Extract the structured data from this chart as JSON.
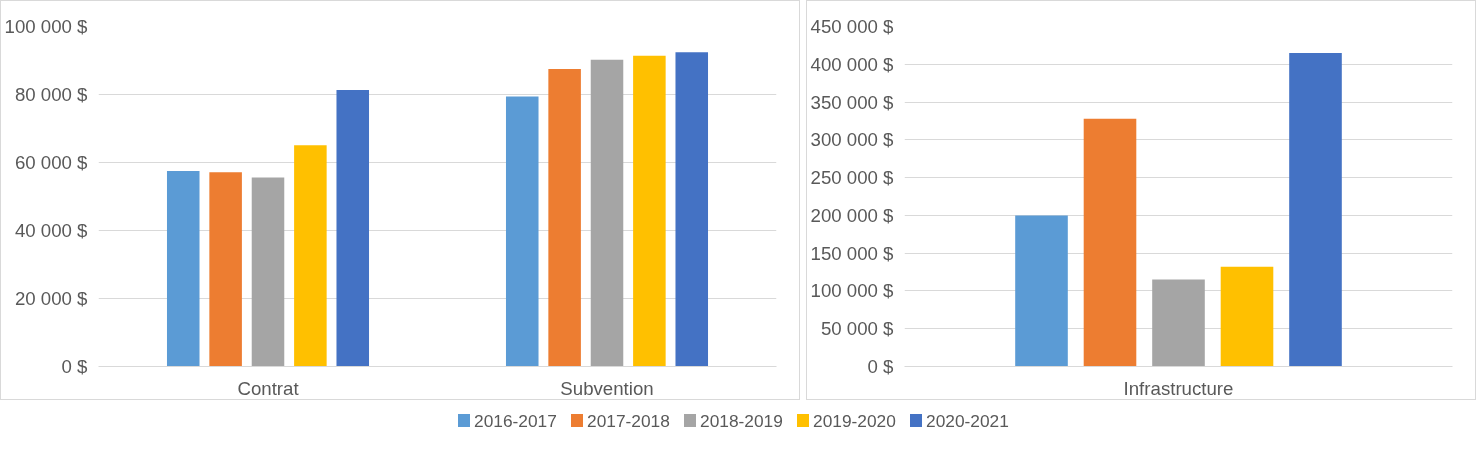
{
  "chart_data": [
    {
      "type": "bar",
      "categories": [
        "Contrat",
        "Subvention"
      ],
      "series": [
        {
          "name": "2016-2017",
          "color": "#5b9bd5",
          "values": [
            57500,
            79400
          ]
        },
        {
          "name": "2017-2018",
          "color": "#ed7d31",
          "values": [
            57100,
            87500
          ]
        },
        {
          "name": "2018-2019",
          "color": "#a5a5a5",
          "values": [
            55600,
            90200
          ]
        },
        {
          "name": "2019-2020",
          "color": "#ffc000",
          "values": [
            65100,
            91400
          ]
        },
        {
          "name": "2020-2021",
          "color": "#4472c4",
          "values": [
            81300,
            92400
          ]
        }
      ],
      "ylim": [
        0,
        100000
      ],
      "yticks": [
        {
          "value": 0,
          "label": "0 $"
        },
        {
          "value": 20000,
          "label": "20 000 $"
        },
        {
          "value": 40000,
          "label": "40 000 $"
        },
        {
          "value": 60000,
          "label": "60 000 $"
        },
        {
          "value": 80000,
          "label": "80 000 $"
        },
        {
          "value": 100000,
          "label": "100 000 $"
        }
      ],
      "grid": "y",
      "legend": "bottom"
    },
    {
      "type": "bar",
      "categories": [
        "Infrastructure"
      ],
      "series": [
        {
          "color": "#5b9bd5",
          "values": [
            200000
          ]
        },
        {
          "color": "#ed7d31",
          "values": [
            328000
          ]
        },
        {
          "color": "#a5a5a5",
          "values": [
            115000
          ]
        },
        {
          "color": "#ffc000",
          "values": [
            132000
          ]
        },
        {
          "color": "#4472c4",
          "values": [
            415000
          ]
        }
      ],
      "ylim": [
        0,
        450000
      ],
      "yticks": [
        {
          "value": 0,
          "label": "0 $"
        },
        {
          "value": 50000,
          "label": "50 000 $"
        },
        {
          "value": 100000,
          "label": "100 000 $"
        },
        {
          "value": 150000,
          "label": "150 000 $"
        },
        {
          "value": 200000,
          "label": "200 000 $"
        },
        {
          "value": 250000,
          "label": "250 000 $"
        },
        {
          "value": 300000,
          "label": "300 000 $"
        },
        {
          "value": 350000,
          "label": "350 000 $"
        },
        {
          "value": 400000,
          "label": "400 000 $"
        },
        {
          "value": 450000,
          "label": "450 000 $"
        }
      ],
      "grid": "y"
    }
  ]
}
